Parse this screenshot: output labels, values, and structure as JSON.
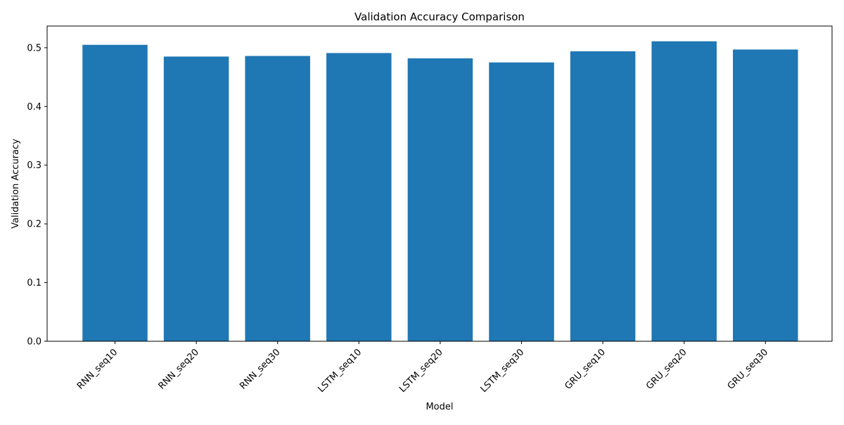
{
  "chart_data": {
    "type": "bar",
    "title": "Validation Accuracy Comparison",
    "xlabel": "Model",
    "ylabel": "Validation Accuracy",
    "categories": [
      "RNN_seq10",
      "RNN_seq20",
      "RNN_seq30",
      "LSTM_seq10",
      "LSTM_seq20",
      "LSTM_seq30",
      "GRU_seq10",
      "GRU_seq20",
      "GRU_seq30"
    ],
    "values": [
      0.505,
      0.485,
      0.486,
      0.491,
      0.482,
      0.475,
      0.494,
      0.511,
      0.497
    ],
    "ylim": [
      0,
      0.537
    ],
    "yticks": [
      0.0,
      0.1,
      0.2,
      0.3,
      0.4,
      0.5
    ],
    "ytick_labels": [
      "0.0",
      "0.1",
      "0.2",
      "0.3",
      "0.4",
      "0.5"
    ],
    "xtick_rotation": 45,
    "grid": false,
    "legend": "none",
    "bar_color": "#1f77b4"
  }
}
